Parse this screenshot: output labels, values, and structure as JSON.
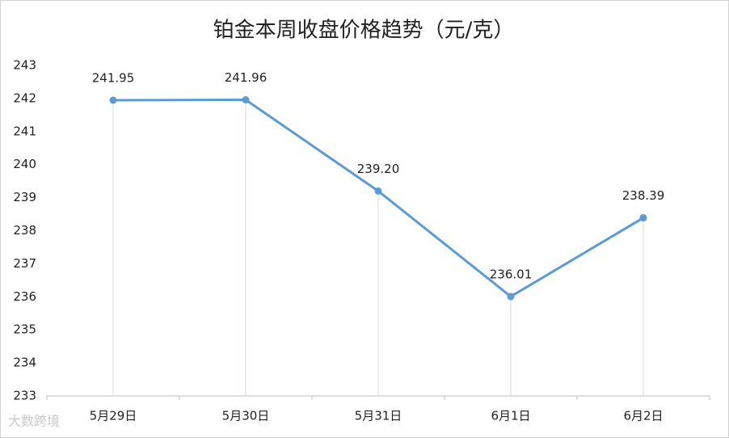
{
  "chart_data": {
    "type": "line",
    "title": "铂金本周收盘价格趋势（元/克）",
    "categories": [
      "5月29日",
      "5月30日",
      "5月31日",
      "6月1日",
      "6月2日"
    ],
    "values": [
      241.95,
      241.96,
      239.2,
      236.01,
      238.39
    ],
    "value_labels": [
      "241.95",
      "241.96",
      "239.20",
      "236.01",
      "238.39"
    ],
    "color": "#5b9bd5",
    "ylim": [
      233,
      243
    ],
    "yticks": [
      233,
      234,
      235,
      236,
      237,
      238,
      239,
      240,
      241,
      242,
      243
    ],
    "drop_lines": true,
    "watermark": "大数跨境"
  }
}
